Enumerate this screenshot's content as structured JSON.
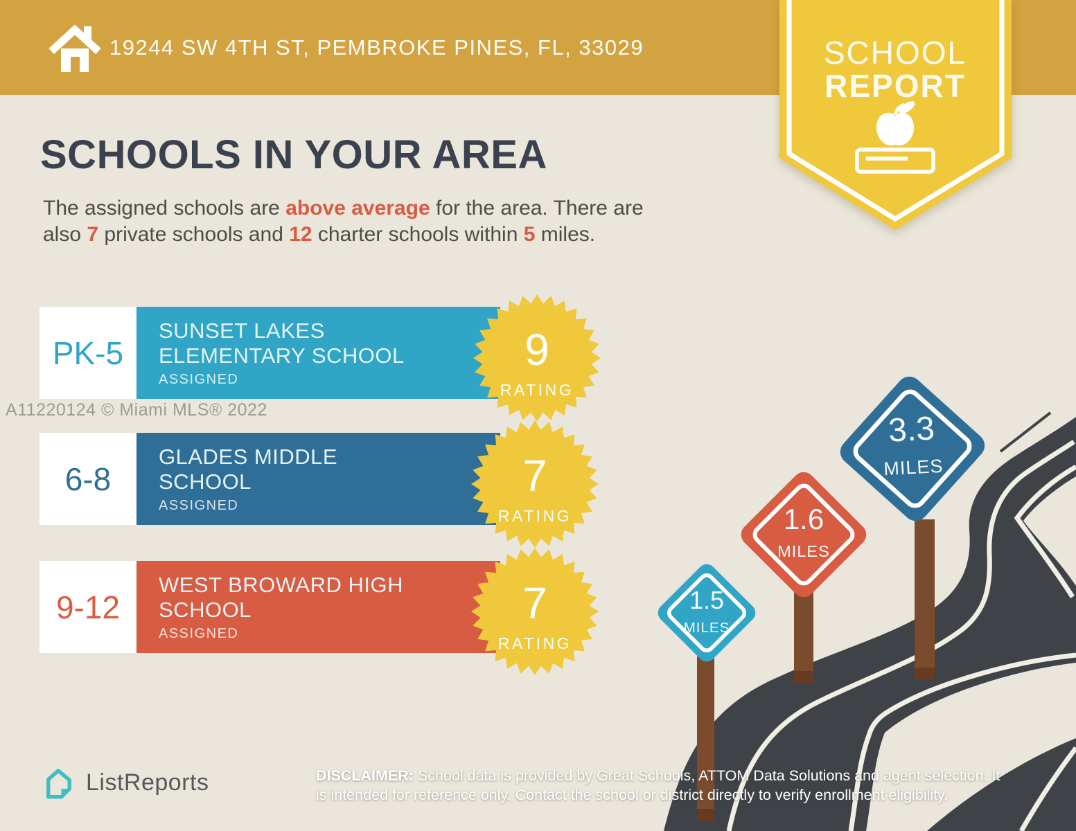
{
  "header": {
    "address": "19244 SW 4TH ST, PEMBROKE PINES, FL, 33029"
  },
  "ribbon": {
    "line1": "SCHOOL",
    "line2": "REPORT"
  },
  "title": "SCHOOLS IN YOUR AREA",
  "intro": {
    "t1": "The assigned schools are ",
    "h1": "above average",
    "t2": " for the area. There are",
    "t3": "also ",
    "h2": "7",
    "t4": " private schools and ",
    "h3": "12",
    "t5": " charter schools within ",
    "h4": "5",
    "t6": " miles."
  },
  "schools": [
    {
      "grade": "PK-5",
      "name1": "SUNSET LAKES",
      "name2": "ELEMENTARY SCHOOL",
      "status": "ASSIGNED",
      "rating": "9",
      "rating_label": "RATING"
    },
    {
      "grade": "6-8",
      "name1": "GLADES MIDDLE",
      "name2": "SCHOOL",
      "status": "ASSIGNED",
      "rating": "7",
      "rating_label": "RATING"
    },
    {
      "grade": "9-12",
      "name1": "WEST BROWARD HIGH",
      "name2": "SCHOOL",
      "status": "ASSIGNED",
      "rating": "7",
      "rating_label": "RATING"
    }
  ],
  "signs": [
    {
      "distance": "1.5",
      "unit": "MILES"
    },
    {
      "distance": "1.6",
      "unit": "MILES"
    },
    {
      "distance": "3.3",
      "unit": "MILES"
    }
  ],
  "watermark": "A11220124 © Miami MLS® 2022",
  "footer": {
    "brand": "ListReports",
    "disclaimer_label": "DISCLAIMER:",
    "disclaimer_line1": " School data is provided by Great Schools, ATTOM Data Solutions and agent selection. It",
    "disclaimer_line2": "is intended for reference only. Contact the school or district directly to verify enrollment eligibility."
  },
  "colors": {
    "gold": "#D4A341",
    "yellow": "#F0C83C",
    "beige": "#EAE6DB",
    "navy": "#3A4250",
    "red": "#D85C41",
    "teal": "#31A5C6",
    "blue": "#2F6E96",
    "road": "#3F4347",
    "line": "#F1EEE4",
    "brown": "#7B4B2E",
    "brown_dark": "#663B22",
    "logo_teal": "#3BBFC1"
  }
}
